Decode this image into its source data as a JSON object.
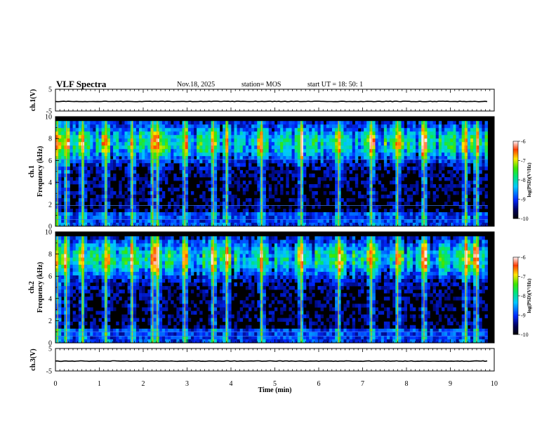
{
  "header": {
    "title": "VLF Spectra",
    "date": "Nov.18, 2025",
    "station": "station= MOS",
    "start": "start  UT =   18: 50: 1"
  },
  "colors": {
    "background": "#ffffff",
    "spectrogram_bg": "#000000",
    "trace": "#000000"
  },
  "chart_data": {
    "type": "heatmap",
    "x": {
      "label": "Time (min)",
      "lim": [
        0,
        10
      ],
      "ticks": [
        0,
        1,
        2,
        3,
        4,
        5,
        6,
        7,
        8,
        9,
        10
      ],
      "data_end": 9.85
    },
    "panels": [
      {
        "id": "ch1-waveform",
        "type": "line",
        "ylabel": "ch.1(V)",
        "ylim": [
          -5,
          5
        ],
        "yticks": [
          5,
          -5
        ],
        "level": -0.6
      },
      {
        "id": "ch1-spectrogram",
        "type": "heatmap",
        "ylabel": "ch.1",
        "ylabel2": "Frequency (kHz)",
        "ylim": [
          0,
          10
        ],
        "yticks": [
          0,
          2,
          4,
          6,
          8,
          10
        ],
        "intense_bursts_min": [
          0.05,
          0.25,
          0.62,
          1.15,
          1.75,
          2.22,
          2.32,
          2.95,
          3.6,
          3.9,
          4.7,
          5.6,
          6.45,
          7.2,
          7.8,
          8.4,
          9.35,
          9.6
        ],
        "lines_khz": [
          0.6,
          1.9,
          6.1
        ],
        "colorbar": {
          "label": "log(PSD)(V²/Hz)",
          "range": [
            -10,
            -6
          ],
          "ticks": [
            -6,
            -7,
            -8,
            -9,
            -10
          ]
        }
      },
      {
        "id": "ch2-spectrogram",
        "type": "heatmap",
        "ylabel": "ch.2",
        "ylabel2": "Frequency (kHz)",
        "ylim": [
          0,
          10
        ],
        "yticks": [
          0,
          2,
          4,
          6,
          8,
          10
        ],
        "intense_bursts_min": [
          0.05,
          0.25,
          0.62,
          1.15,
          1.75,
          2.22,
          2.32,
          2.95,
          3.6,
          3.9,
          4.7,
          5.6,
          6.45,
          7.2,
          7.8,
          8.4,
          9.35,
          9.6
        ],
        "lines_khz": [
          0.6,
          1.0
        ],
        "colorbar": {
          "label": "log(PSD)(V²/Hz)",
          "range": [
            -10,
            -6
          ],
          "ticks": [
            -6,
            -7,
            -8,
            -9,
            -10
          ]
        }
      },
      {
        "id": "ch3-waveform",
        "type": "line",
        "ylabel": "ch.3(V)",
        "ylim": [
          -5,
          5
        ],
        "yticks": [
          5,
          -5
        ],
        "level": -0.6
      }
    ]
  }
}
